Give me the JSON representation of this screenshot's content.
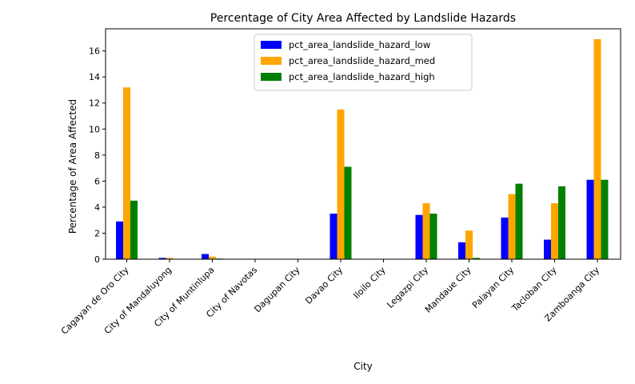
{
  "chart_data": {
    "type": "bar",
    "title": "Percentage of City Area Affected by Landslide Hazards",
    "xlabel": "City",
    "ylabel": "Percentage of Area Affected",
    "ylim": [
      0,
      17.7
    ],
    "yticks": [
      0,
      2,
      4,
      6,
      8,
      10,
      12,
      14,
      16
    ],
    "grid": false,
    "legend_position": "top-center",
    "categories": [
      "Cagayan de Oro City",
      "City of Mandaluyong",
      "City of Muntinlupa",
      "City of Navotas",
      "Dagupan City",
      "Davao City",
      "Iloilo City",
      "Legazpi City",
      "Mandaue City",
      "Palayan City",
      "Tacloban City",
      "Zamboanga City"
    ],
    "series": [
      {
        "name": "pct_area_landslide_hazard_low",
        "color": "#0000ff",
        "values": [
          2.9,
          0.1,
          0.4,
          0.0,
          0.0,
          3.5,
          0.0,
          3.4,
          1.3,
          3.2,
          1.5,
          6.1
        ]
      },
      {
        "name": "pct_area_landslide_hazard_med",
        "color": "#ffa500",
        "values": [
          13.2,
          0.1,
          0.2,
          0.0,
          0.0,
          11.5,
          0.0,
          4.3,
          2.2,
          5.0,
          4.3,
          16.9
        ]
      },
      {
        "name": "pct_area_landslide_hazard_high",
        "color": "#008000",
        "values": [
          4.5,
          0.0,
          0.05,
          0.0,
          0.0,
          7.1,
          0.0,
          3.5,
          0.1,
          5.8,
          5.6,
          6.1
        ]
      }
    ]
  }
}
